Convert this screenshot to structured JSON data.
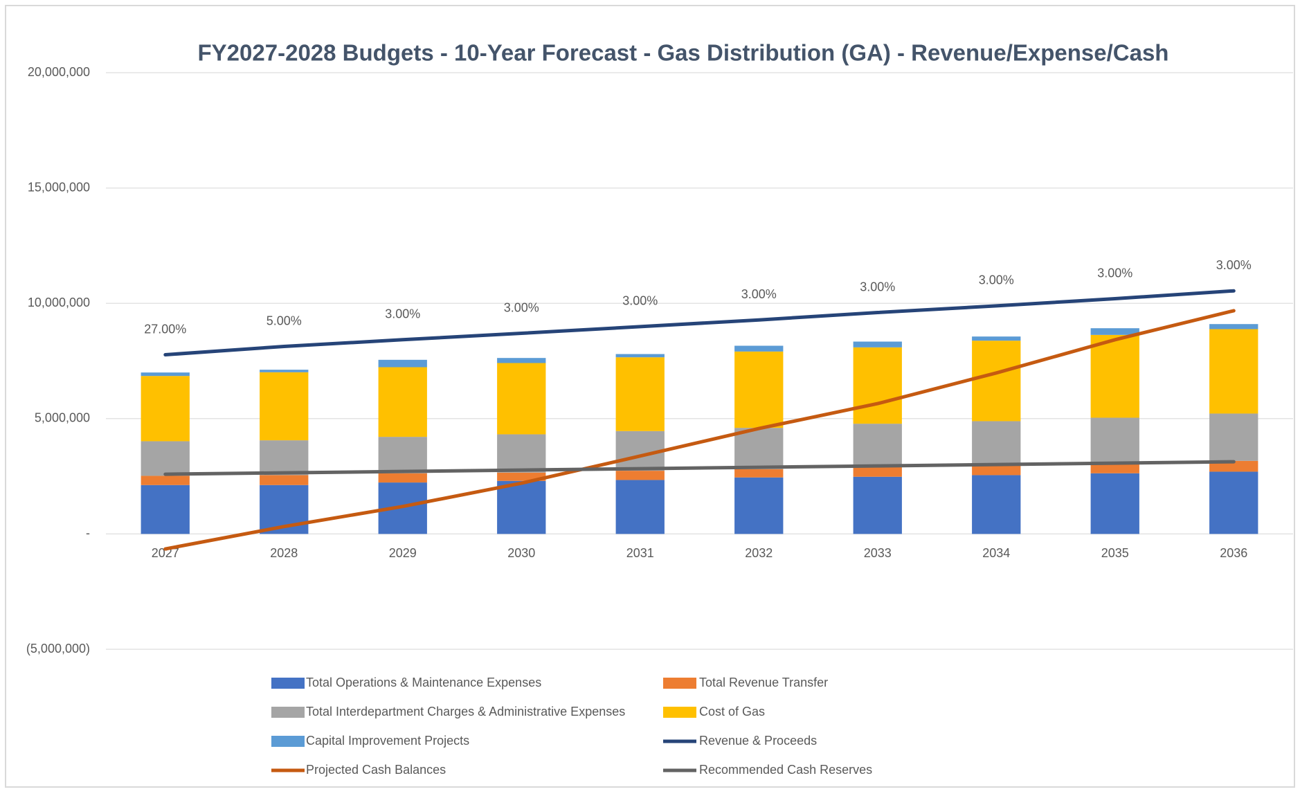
{
  "chart_data": {
    "type": "bar",
    "stacked": true,
    "title": "FY2027-2028 Budgets - 10-Year Forecast -  Gas Distribution (GA) - Revenue/Expense/Cash",
    "categories": [
      "2027",
      "2028",
      "2029",
      "2030",
      "2031",
      "2032",
      "2033",
      "2034",
      "2035",
      "2036"
    ],
    "ylim": [
      -5000000,
      20000000
    ],
    "yticks": [
      {
        "value": -5000000,
        "label": "(5,000,000)"
      },
      {
        "value": 0,
        "label": "-"
      },
      {
        "value": 5000000,
        "label": "5,000,000"
      },
      {
        "value": 10000000,
        "label": "10,000,000"
      },
      {
        "value": 15000000,
        "label": "15,000,000"
      },
      {
        "value": 20000000,
        "label": "20,000,000"
      }
    ],
    "grid": true,
    "legend": "bottom",
    "annotations": [
      "27.00%",
      "5.00%",
      "3.00%",
      "3.00%",
      "3.00%",
      "3.00%",
      "3.00%",
      "3.00%",
      "3.00%",
      "3.00%"
    ],
    "series": [
      {
        "name": "Total Operations & Maintenance Expenses",
        "type": "bar",
        "color": "#4472c4",
        "values": [
          2120000,
          2120000,
          2230000,
          2300000,
          2340000,
          2450000,
          2480000,
          2550000,
          2630000,
          2700000
        ]
      },
      {
        "name": "Total Revenue Transfer",
        "type": "bar",
        "color": "#ed7d31",
        "values": [
          400000,
          430000,
          400000,
          360000,
          400000,
          360000,
          430000,
          440000,
          390000,
          470000
        ]
      },
      {
        "name": "Total Interdepartment Charges & Administrative Expenses",
        "type": "bar",
        "color": "#a5a5a5",
        "values": [
          1500000,
          1510000,
          1580000,
          1660000,
          1720000,
          1790000,
          1870000,
          1900000,
          2020000,
          2050000
        ]
      },
      {
        "name": "Cost of Gas",
        "type": "bar",
        "color": "#ffc000",
        "values": [
          2830000,
          2950000,
          3020000,
          3090000,
          3200000,
          3310000,
          3310000,
          3490000,
          3590000,
          3660000
        ]
      },
      {
        "name": "Capital Improvement Projects",
        "type": "bar",
        "color": "#5b9bd5",
        "values": [
          150000,
          110000,
          320000,
          220000,
          140000,
          250000,
          250000,
          180000,
          290000,
          220000
        ]
      },
      {
        "name": "Revenue & Proceeds",
        "type": "line",
        "color": "#264478",
        "values": [
          7770000,
          8130000,
          8420000,
          8700000,
          8990000,
          9280000,
          9600000,
          9890000,
          10200000,
          10540000
        ]
      },
      {
        "name": "Projected Cash Balances",
        "type": "line",
        "color": "#c55a11",
        "values": [
          -650000,
          320000,
          1190000,
          2200000,
          3380000,
          4570000,
          5650000,
          6980000,
          8420000,
          9680000
        ]
      },
      {
        "name": "Recommended Cash Reserves",
        "type": "line",
        "color": "#636363",
        "values": [
          2590000,
          2650000,
          2710000,
          2770000,
          2830000,
          2890000,
          2950000,
          3010000,
          3070000,
          3130000
        ]
      }
    ]
  }
}
